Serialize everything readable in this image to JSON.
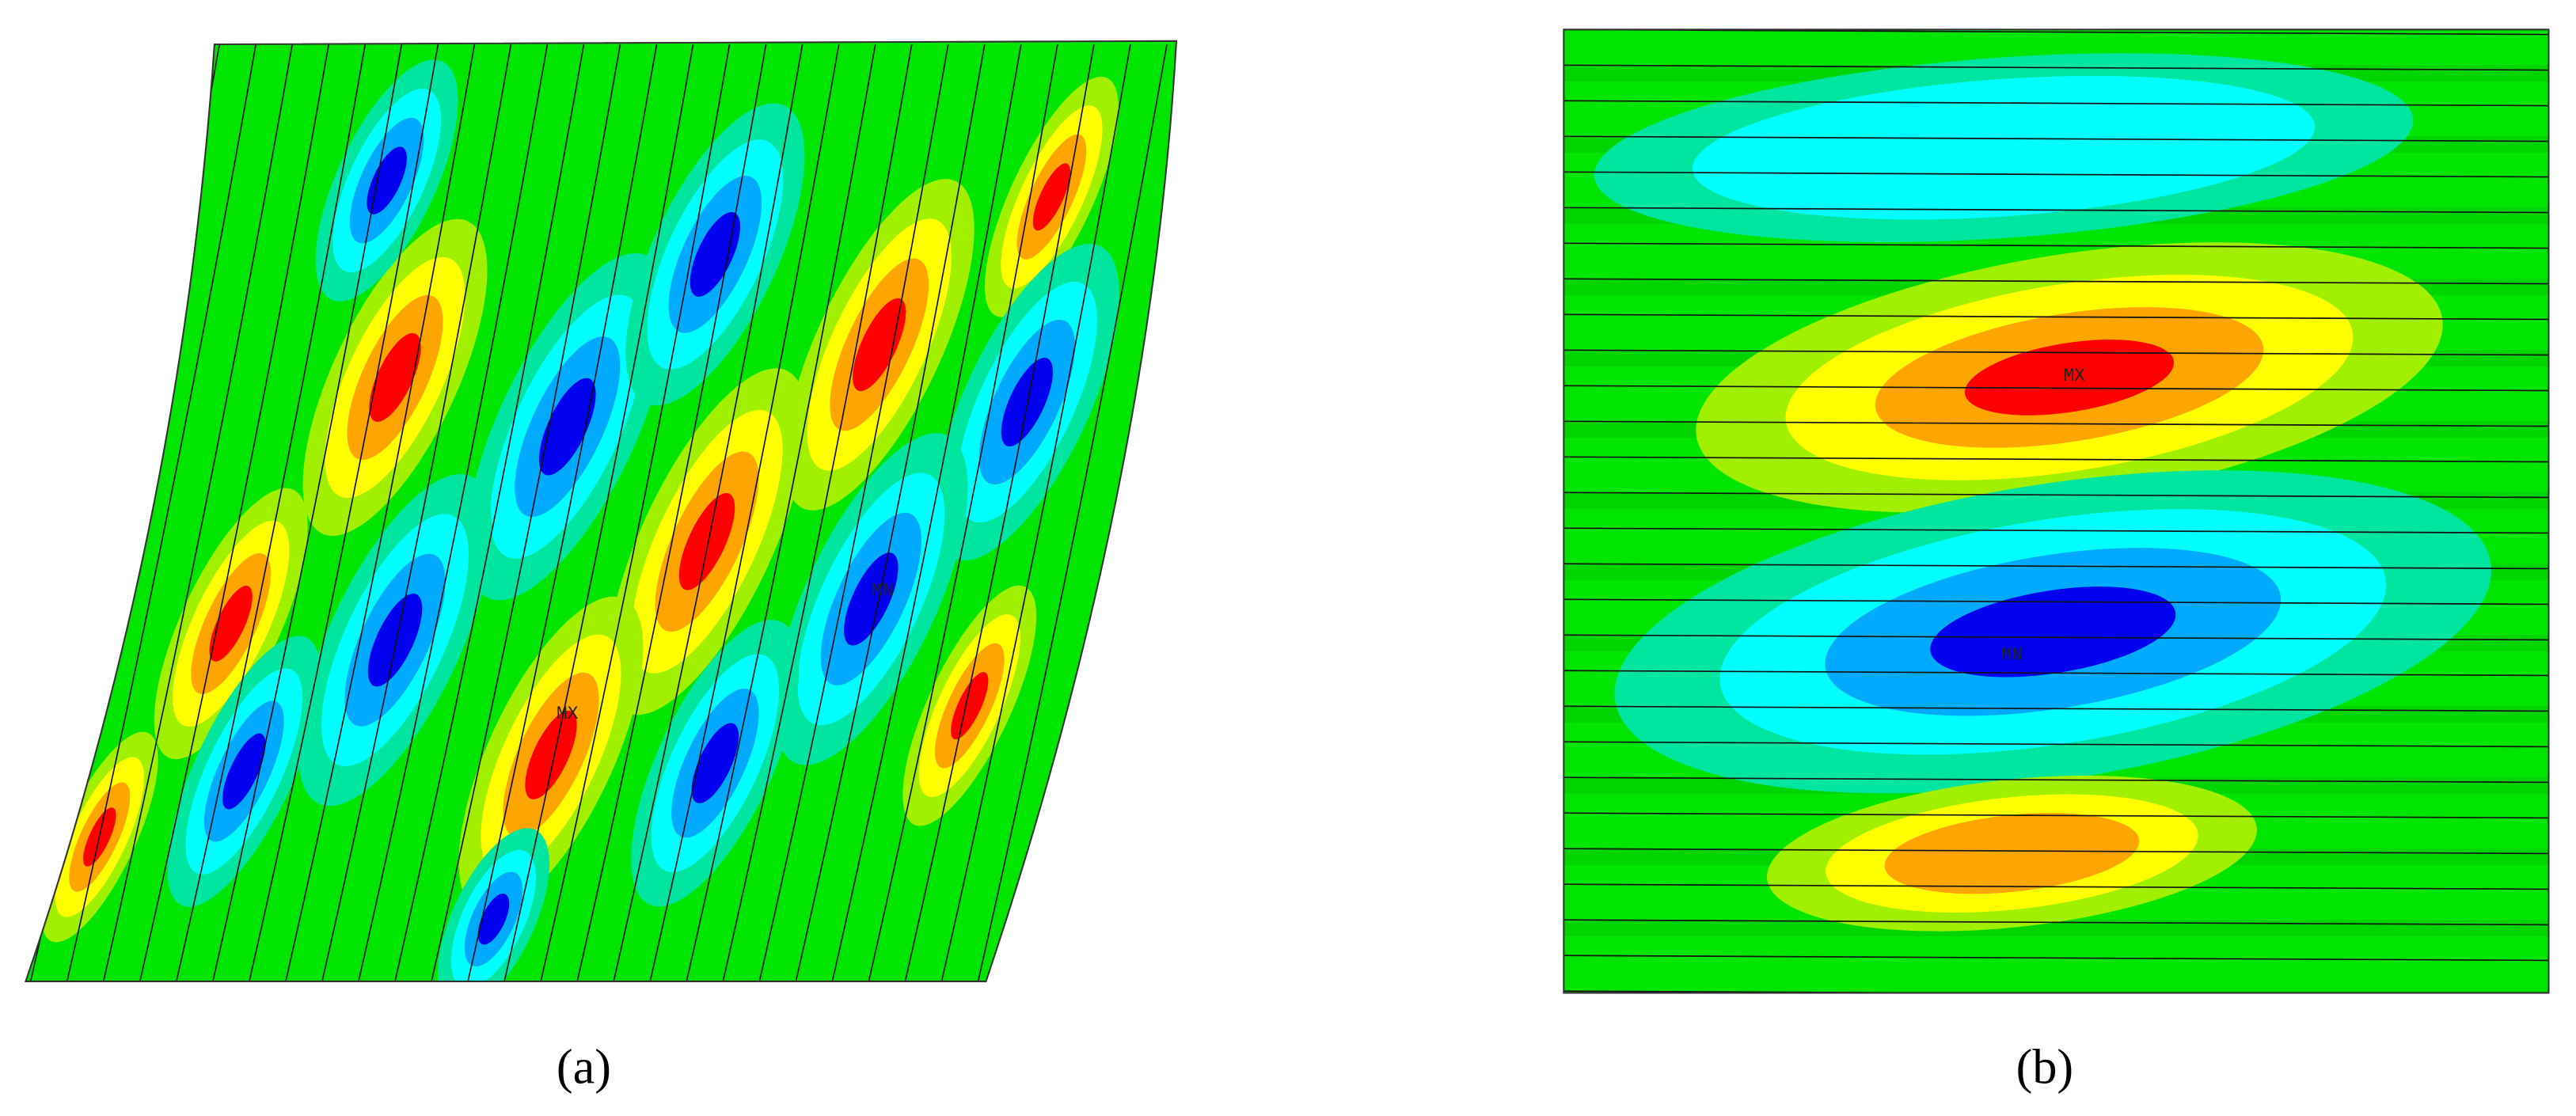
{
  "panels": [
    {
      "label": "(a)",
      "max_label": "MX",
      "min_label": "MN"
    },
    {
      "label": "(b)",
      "max_label": "MX",
      "min_label": "MN"
    }
  ]
}
